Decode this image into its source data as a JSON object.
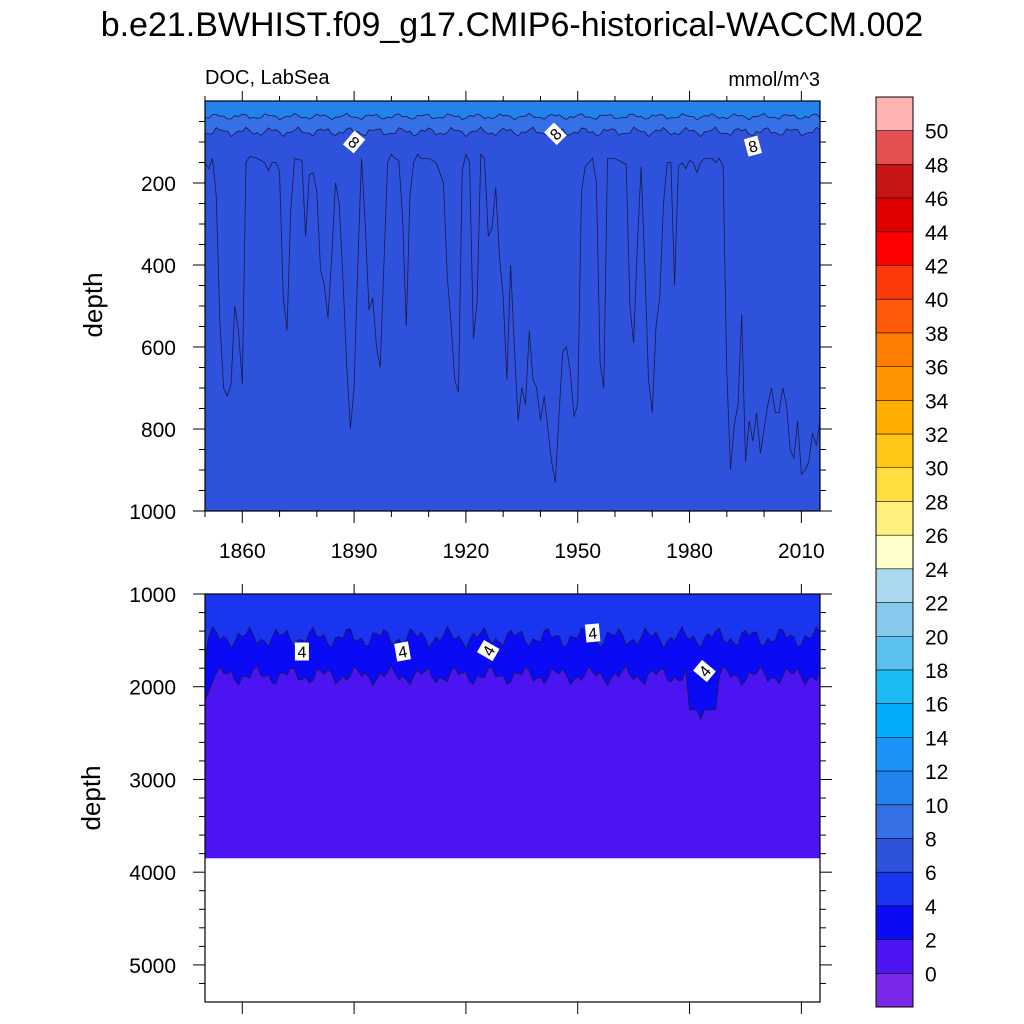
{
  "title": "b.e21.BWHIST.f09_g17.CMIP6-historical-WACCM.002",
  "chart_data": [
    {
      "type": "contour",
      "variable": "DOC, LabSea",
      "units": "mmol/m^3",
      "ylabel": "depth",
      "ylim": [
        1000,
        0
      ],
      "xlim": [
        1850,
        2015
      ],
      "xticks": [
        1860,
        1890,
        1920,
        1950,
        1980,
        2010
      ],
      "yticks": [
        200,
        400,
        600,
        800,
        1000
      ],
      "contour_labels": [
        {
          "year": 1890,
          "depth": 100,
          "text": "8",
          "angle": 40
        },
        {
          "year": 1944,
          "depth": 80,
          "text": "8",
          "angle": -45
        },
        {
          "year": 1997,
          "depth": 110,
          "text": "8",
          "angle": -15
        }
      ],
      "boundary_6_8": [
        [
          1850,
          150
        ],
        [
          1851,
          165
        ],
        [
          1852,
          140
        ],
        [
          1853,
          230
        ],
        [
          1854,
          540
        ],
        [
          1855,
          700
        ],
        [
          1856,
          720
        ],
        [
          1857,
          690
        ],
        [
          1858,
          500
        ],
        [
          1859,
          560
        ],
        [
          1860,
          690
        ],
        [
          1861,
          150
        ],
        [
          1862,
          135
        ],
        [
          1864,
          140
        ],
        [
          1866,
          150
        ],
        [
          1867,
          170
        ],
        [
          1868,
          150
        ],
        [
          1869,
          150
        ],
        [
          1870,
          170
        ],
        [
          1871,
          480
        ],
        [
          1872,
          560
        ],
        [
          1873,
          270
        ],
        [
          1874,
          140
        ],
        [
          1876,
          145
        ],
        [
          1877,
          330
        ],
        [
          1878,
          180
        ],
        [
          1879,
          175
        ],
        [
          1880,
          220
        ],
        [
          1881,
          410
        ],
        [
          1882,
          450
        ],
        [
          1883,
          530
        ],
        [
          1884,
          380
        ],
        [
          1885,
          200
        ],
        [
          1886,
          250
        ],
        [
          1887,
          430
        ],
        [
          1888,
          640
        ],
        [
          1889,
          800
        ],
        [
          1890,
          700
        ],
        [
          1891,
          400
        ],
        [
          1892,
          140
        ],
        [
          1893,
          300
        ],
        [
          1894,
          510
        ],
        [
          1895,
          480
        ],
        [
          1896,
          600
        ],
        [
          1897,
          650
        ],
        [
          1898,
          400
        ],
        [
          1899,
          150
        ],
        [
          1900,
          130
        ],
        [
          1901,
          140
        ],
        [
          1902,
          145
        ],
        [
          1903,
          280
        ],
        [
          1904,
          550
        ],
        [
          1905,
          230
        ],
        [
          1906,
          150
        ],
        [
          1907,
          130
        ],
        [
          1908,
          140
        ],
        [
          1910,
          140
        ],
        [
          1912,
          150
        ],
        [
          1914,
          200
        ],
        [
          1915,
          430
        ],
        [
          1916,
          540
        ],
        [
          1917,
          680
        ],
        [
          1918,
          710
        ],
        [
          1919,
          170
        ],
        [
          1920,
          130
        ],
        [
          1921,
          150
        ],
        [
          1922,
          580
        ],
        [
          1923,
          490
        ],
        [
          1924,
          130
        ],
        [
          1925,
          140
        ],
        [
          1926,
          330
        ],
        [
          1927,
          310
        ],
        [
          1928,
          210
        ],
        [
          1929,
          380
        ],
        [
          1930,
          480
        ],
        [
          1931,
          680
        ],
        [
          1932,
          400
        ],
        [
          1933,
          600
        ],
        [
          1934,
          780
        ],
        [
          1935,
          700
        ],
        [
          1936,
          740
        ],
        [
          1937,
          560
        ],
        [
          1938,
          680
        ],
        [
          1939,
          700
        ],
        [
          1940,
          780
        ],
        [
          1941,
          720
        ],
        [
          1942,
          800
        ],
        [
          1943,
          880
        ],
        [
          1944,
          930
        ],
        [
          1945,
          760
        ],
        [
          1946,
          610
        ],
        [
          1947,
          600
        ],
        [
          1948,
          660
        ],
        [
          1949,
          770
        ],
        [
          1950,
          740
        ],
        [
          1951,
          220
        ],
        [
          1952,
          160
        ],
        [
          1953,
          150
        ],
        [
          1954,
          140
        ],
        [
          1955,
          200
        ],
        [
          1956,
          640
        ],
        [
          1957,
          700
        ],
        [
          1958,
          140
        ],
        [
          1960,
          140
        ],
        [
          1962,
          150
        ],
        [
          1963,
          155
        ],
        [
          1964,
          500
        ],
        [
          1965,
          590
        ],
        [
          1966,
          350
        ],
        [
          1967,
          160
        ],
        [
          1968,
          400
        ],
        [
          1969,
          680
        ],
        [
          1970,
          760
        ],
        [
          1971,
          550
        ],
        [
          1972,
          480
        ],
        [
          1973,
          250
        ],
        [
          1974,
          150
        ],
        [
          1975,
          150
        ],
        [
          1976,
          450
        ],
        [
          1977,
          160
        ],
        [
          1978,
          150
        ],
        [
          1979,
          165
        ],
        [
          1980,
          145
        ],
        [
          1981,
          150
        ],
        [
          1982,
          175
        ],
        [
          1983,
          150
        ],
        [
          1984,
          140
        ],
        [
          1986,
          140
        ],
        [
          1987,
          150
        ],
        [
          1988,
          140
        ],
        [
          1989,
          160
        ],
        [
          1990,
          660
        ],
        [
          1991,
          900
        ],
        [
          1992,
          790
        ],
        [
          1993,
          740
        ],
        [
          1994,
          520
        ],
        [
          1995,
          880
        ],
        [
          1996,
          780
        ],
        [
          1997,
          830
        ],
        [
          1998,
          760
        ],
        [
          1999,
          860
        ],
        [
          2000,
          800
        ],
        [
          2001,
          740
        ],
        [
          2002,
          700
        ],
        [
          2003,
          760
        ],
        [
          2004,
          760
        ],
        [
          2005,
          700
        ],
        [
          2006,
          740
        ],
        [
          2007,
          850
        ],
        [
          2008,
          870
        ],
        [
          2009,
          780
        ],
        [
          2010,
          910
        ],
        [
          2011,
          900
        ],
        [
          2012,
          880
        ],
        [
          2013,
          810
        ],
        [
          2014,
          840
        ],
        [
          2015,
          780
        ]
      ]
    },
    {
      "type": "contour",
      "ylabel": "depth",
      "ylim": [
        5400,
        1000
      ],
      "xlim": [
        1850,
        2015
      ],
      "yticks": [
        1000,
        2000,
        3000,
        4000,
        5000
      ],
      "sea_floor_depth": 3850,
      "contour_labels": [
        {
          "year": 1876,
          "depth": 1620,
          "text": "4",
          "angle": 0
        },
        {
          "year": 1903,
          "depth": 1620,
          "text": "4",
          "angle": -10
        },
        {
          "year": 1926,
          "depth": 1610,
          "text": "4",
          "angle": -60
        },
        {
          "year": 1954,
          "depth": 1420,
          "text": "4",
          "angle": -5
        },
        {
          "year": 1984,
          "depth": 1830,
          "text": "4",
          "angle": -50
        }
      ]
    }
  ],
  "colorbar": {
    "levels": [
      "50",
      "48",
      "46",
      "44",
      "42",
      "40",
      "38",
      "36",
      "34",
      "32",
      "30",
      "28",
      "26",
      "24",
      "22",
      "20",
      "18",
      "16",
      "14",
      "12",
      "10",
      "8",
      "6",
      "4",
      "2",
      "0"
    ],
    "colors": [
      "#ffb2b2",
      "#e65050",
      "#c81414",
      "#e00000",
      "#ff0000",
      "#ff3a0a",
      "#ff5a0a",
      "#ff7d05",
      "#ff9500",
      "#ffae00",
      "#ffc615",
      "#ffdc40",
      "#fff07e",
      "#ffffcc",
      "#aad8ef",
      "#87c9ed",
      "#5ac0f0",
      "#1bbaf5",
      "#00acf8",
      "#1993f5",
      "#2282ee",
      "#3570e6",
      "#2e52dc",
      "#1a35f0",
      "#0a0af5",
      "#4c14f0",
      "#7a28e8"
    ]
  }
}
